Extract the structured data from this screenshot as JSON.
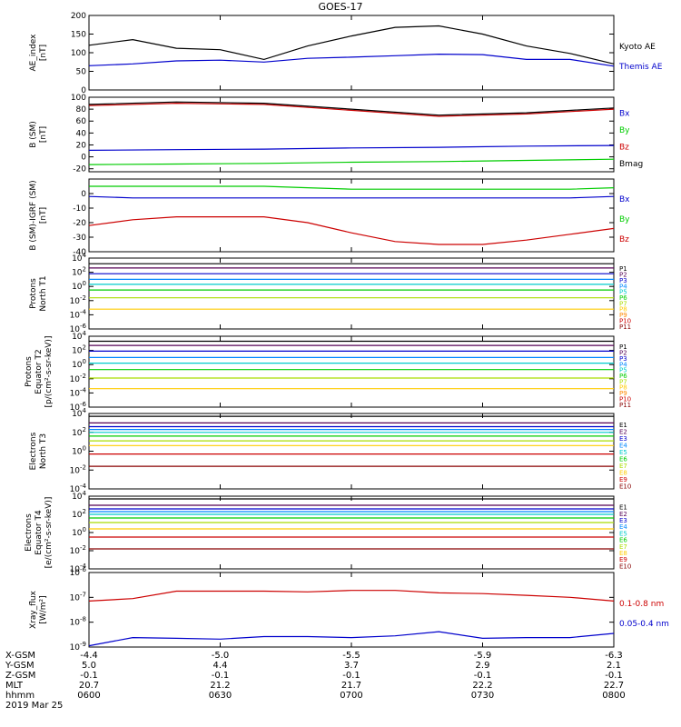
{
  "title": "GOES-17",
  "date_label": "2019 Mar 25",
  "footer": {
    "rows": [
      {
        "label": "X-GSM",
        "values": [
          "-4.4",
          "-5.0",
          "-5.5",
          "-5.9",
          "-6.3"
        ]
      },
      {
        "label": "Y-GSM",
        "values": [
          "5.0",
          "4.4",
          "3.7",
          "2.9",
          "2.1"
        ]
      },
      {
        "label": "Z-GSM",
        "values": [
          "-0.1",
          "-0.1",
          "-0.1",
          "-0.1",
          "-0.1"
        ]
      },
      {
        "label": "MLT",
        "values": [
          "20.7",
          "21.2",
          "21.7",
          "22.2",
          "22.7"
        ]
      },
      {
        "label": "hhmm",
        "values": [
          "0600",
          "0630",
          "0700",
          "0730",
          "0800"
        ]
      }
    ]
  },
  "chart_data": [
    {
      "type": "line",
      "panel": "ae",
      "ylabel": "AE_index\n[nT]",
      "ylim": [
        0,
        200
      ],
      "yscale": "linear",
      "yticks": [
        0,
        50,
        100,
        150,
        200
      ],
      "ytick_labels": [
        "0",
        "50",
        "100",
        "150",
        "200"
      ],
      "xlim": [
        0,
        120
      ],
      "x": [
        0,
        10,
        20,
        30,
        40,
        50,
        60,
        70,
        80,
        90,
        100,
        110,
        120
      ],
      "series": [
        {
          "name": "Kyoto AE",
          "color": "#000000",
          "values": [
            120,
            135,
            112,
            108,
            82,
            118,
            145,
            168,
            172,
            150,
            118,
            98,
            70
          ]
        },
        {
          "name": "Themis AE",
          "color": "#0000cc",
          "values": [
            65,
            70,
            78,
            80,
            75,
            85,
            88,
            92,
            96,
            95,
            82,
            82,
            64
          ]
        }
      ]
    },
    {
      "type": "line",
      "panel": "b-sm",
      "ylabel": "B (SM)\n[nT]",
      "ylim": [
        -25,
        100
      ],
      "yscale": "linear",
      "yticks": [
        -20,
        0,
        20,
        40,
        60,
        80,
        100
      ],
      "ytick_labels": [
        "-20",
        "0",
        "20",
        "40",
        "60",
        "80",
        "100"
      ],
      "xlim": [
        0,
        120
      ],
      "x": [
        0,
        20,
        40,
        60,
        80,
        100,
        120
      ],
      "series": [
        {
          "name": "Bx",
          "color": "#0000cc",
          "values": [
            11,
            12,
            13,
            15,
            16,
            18,
            19
          ]
        },
        {
          "name": "By",
          "color": "#00cc00",
          "values": [
            -13,
            -12,
            -11,
            -9,
            -8,
            -6,
            -4
          ]
        },
        {
          "name": "Bz",
          "color": "#cc0000",
          "values": [
            86,
            90,
            88,
            78,
            68,
            72,
            80
          ]
        },
        {
          "name": "Bmag",
          "color": "#000000",
          "values": [
            88,
            92,
            90,
            80,
            70,
            74,
            82
          ]
        }
      ]
    },
    {
      "type": "line",
      "panel": "b-minus-igrf",
      "ylabel": "B (SM)-IGRF (SM)\n[nT]",
      "ylim": [
        -40,
        10
      ],
      "yscale": "linear",
      "yticks": [
        -40,
        -30,
        -20,
        -10,
        0
      ],
      "ytick_labels": [
        "-40",
        "-30",
        "-20",
        "-10",
        "0"
      ],
      "xlim": [
        0,
        120
      ],
      "x": [
        0,
        10,
        20,
        30,
        40,
        50,
        60,
        70,
        80,
        90,
        100,
        110,
        120
      ],
      "series": [
        {
          "name": "Bx",
          "color": "#0000cc",
          "values": [
            -2,
            -3,
            -3,
            -3,
            -3,
            -3,
            -3,
            -3,
            -3,
            -3,
            -3,
            -3,
            -2
          ]
        },
        {
          "name": "By",
          "color": "#00cc00",
          "values": [
            5,
            5,
            5,
            5,
            5,
            4,
            3,
            3,
            3,
            3,
            3,
            3,
            4
          ]
        },
        {
          "name": "Bz",
          "color": "#cc0000",
          "values": [
            -22,
            -18,
            -16,
            -16,
            -16,
            -20,
            -27,
            -33,
            -35,
            -35,
            -32,
            -28,
            -24
          ]
        }
      ]
    },
    {
      "type": "line",
      "panel": "protons-t1",
      "ylabel": "Protons\nNorth T1",
      "ylim": [
        -6,
        4
      ],
      "yscale": "log10",
      "yticks": [
        -6,
        -4,
        -2,
        0,
        2,
        4
      ],
      "ytick_labels": [
        "10^-6",
        "10^-4",
        "10^-2",
        "10^0",
        "10^2",
        "10^4"
      ],
      "xlim": [
        0,
        120
      ],
      "x": [
        0,
        120
      ],
      "series": [
        {
          "name": "P1",
          "color": "#000000",
          "values": [
            3.2,
            3.2
          ]
        },
        {
          "name": "P2",
          "color": "#550055",
          "values": [
            2.6,
            2.6
          ]
        },
        {
          "name": "P3",
          "color": "#0000cc",
          "values": [
            1.8,
            1.8
          ]
        },
        {
          "name": "P4",
          "color": "#0088ff",
          "values": [
            1.0,
            1.0
          ]
        },
        {
          "name": "P5",
          "color": "#00cccc",
          "values": [
            0.3,
            0.3
          ]
        },
        {
          "name": "P6",
          "color": "#00cc00",
          "values": [
            -0.5,
            -0.5
          ]
        },
        {
          "name": "P7",
          "color": "#aadd00",
          "values": [
            -1.6,
            -1.6
          ]
        },
        {
          "name": "P8",
          "color": "#ffcc00",
          "values": [
            -3.2,
            -3.2
          ]
        },
        {
          "name": "P9",
          "color": "#ff8800",
          "values": [
            null,
            null
          ]
        },
        {
          "name": "P10",
          "color": "#cc0000",
          "values": [
            null,
            null
          ]
        },
        {
          "name": "P11",
          "color": "#880000",
          "values": [
            null,
            null
          ]
        }
      ]
    },
    {
      "type": "line",
      "panel": "protons-t2",
      "ylabel": "Protons\nEquator T2\n[p/(cm²-s-sr-keV)]",
      "ylim": [
        -6,
        4
      ],
      "yscale": "log10",
      "yticks": [
        -6,
        -4,
        -2,
        0,
        2,
        4
      ],
      "ytick_labels": [
        "10^-6",
        "10^-4",
        "10^-2",
        "10^0",
        "10^2",
        "10^4"
      ],
      "xlim": [
        0,
        120
      ],
      "x": [
        0,
        120
      ],
      "series": [
        {
          "name": "P1",
          "color": "#000000",
          "values": [
            3.3,
            3.3
          ]
        },
        {
          "name": "P2",
          "color": "#550055",
          "values": [
            2.7,
            2.7
          ]
        },
        {
          "name": "P3",
          "color": "#0000cc",
          "values": [
            1.9,
            1.9
          ]
        },
        {
          "name": "P4",
          "color": "#0088ff",
          "values": [
            1.0,
            1.0
          ]
        },
        {
          "name": "P5",
          "color": "#00cccc",
          "values": [
            0.2,
            0.2
          ]
        },
        {
          "name": "P6",
          "color": "#00cc00",
          "values": [
            -0.7,
            -0.7
          ]
        },
        {
          "name": "P7",
          "color": "#aadd00",
          "values": [
            -1.9,
            -1.9
          ]
        },
        {
          "name": "P8",
          "color": "#ffcc00",
          "values": [
            -3.4,
            -3.4
          ]
        },
        {
          "name": "P9",
          "color": "#ff8800",
          "values": [
            null,
            null
          ]
        },
        {
          "name": "P10",
          "color": "#cc0000",
          "values": [
            null,
            null
          ]
        },
        {
          "name": "P11",
          "color": "#880000",
          "values": [
            null,
            null
          ]
        }
      ]
    },
    {
      "type": "line",
      "panel": "electrons-t3",
      "ylabel": "Electrons\nNorth T3",
      "ylim": [
        -4,
        4
      ],
      "yscale": "log10",
      "yticks": [
        -4,
        -2,
        0,
        2,
        4
      ],
      "ytick_labels": [
        "10^-4",
        "10^-2",
        "10^0",
        "10^2",
        "10^4"
      ],
      "xlim": [
        0,
        120
      ],
      "x": [
        0,
        120
      ],
      "series": [
        {
          "name": "E1",
          "color": "#000000",
          "values": [
            3.7,
            3.7
          ]
        },
        {
          "name": "E2",
          "color": "#550055",
          "values": [
            3.0,
            3.0
          ]
        },
        {
          "name": "E3",
          "color": "#0000cc",
          "values": [
            2.6,
            2.6
          ]
        },
        {
          "name": "E4",
          "color": "#0088ff",
          "values": [
            2.3,
            2.3
          ]
        },
        {
          "name": "E5",
          "color": "#00cccc",
          "values": [
            2.0,
            2.0
          ]
        },
        {
          "name": "E6",
          "color": "#00cc00",
          "values": [
            1.6,
            1.6
          ]
        },
        {
          "name": "E7",
          "color": "#aadd00",
          "values": [
            1.1,
            1.1
          ]
        },
        {
          "name": "E8",
          "color": "#ffcc00",
          "values": [
            0.6,
            0.6
          ]
        },
        {
          "name": "E9",
          "color": "#cc0000",
          "values": [
            -0.3,
            -0.3
          ]
        },
        {
          "name": "E10",
          "color": "#880000",
          "values": [
            -1.6,
            -1.6
          ]
        }
      ]
    },
    {
      "type": "line",
      "panel": "electrons-t4",
      "ylabel": "Electrons\nEquator T4\n[e/(cm²-s-sr-keV)]",
      "ylim": [
        -4,
        4
      ],
      "yscale": "log10",
      "yticks": [
        -4,
        -2,
        0,
        2,
        4
      ],
      "ytick_labels": [
        "10^-4",
        "10^-2",
        "10^0",
        "10^2",
        "10^4"
      ],
      "xlim": [
        0,
        120
      ],
      "x": [
        0,
        120
      ],
      "series": [
        {
          "name": "E1",
          "color": "#000000",
          "values": [
            3.7,
            3.7
          ]
        },
        {
          "name": "E2",
          "color": "#550055",
          "values": [
            3.0,
            3.0
          ]
        },
        {
          "name": "E3",
          "color": "#0000cc",
          "values": [
            2.6,
            2.6
          ]
        },
        {
          "name": "E4",
          "color": "#0088ff",
          "values": [
            2.3,
            2.3
          ]
        },
        {
          "name": "E5",
          "color": "#00cccc",
          "values": [
            2.0,
            2.0
          ]
        },
        {
          "name": "E6",
          "color": "#00cc00",
          "values": [
            1.6,
            1.6
          ]
        },
        {
          "name": "E7",
          "color": "#aadd00",
          "values": [
            1.1,
            1.1
          ]
        },
        {
          "name": "E8",
          "color": "#ffcc00",
          "values": [
            0.4,
            0.4
          ]
        },
        {
          "name": "E9",
          "color": "#cc0000",
          "values": [
            -0.5,
            -0.5
          ]
        },
        {
          "name": "E10",
          "color": "#880000",
          "values": [
            -1.8,
            -1.8
          ]
        }
      ]
    },
    {
      "type": "line",
      "panel": "xray",
      "ylabel": "Xray_flux\n[W/m²]",
      "ylim": [
        -9,
        -6
      ],
      "yscale": "log10",
      "yticks": [
        -9,
        -8,
        -7,
        -6
      ],
      "ytick_labels": [
        "10^-9",
        "10^-8",
        "10^-7",
        "10^-6"
      ],
      "xlim": [
        0,
        120
      ],
      "x": [
        0,
        10,
        20,
        30,
        40,
        50,
        60,
        70,
        80,
        90,
        100,
        110,
        120
      ],
      "series": [
        {
          "name": "0.1-0.8 nm",
          "color": "#cc0000",
          "values": [
            -7.15,
            -7.05,
            -6.75,
            -6.75,
            -6.75,
            -6.78,
            -6.72,
            -6.72,
            -6.82,
            -6.85,
            -6.92,
            -7.0,
            -7.15
          ]
        },
        {
          "name": "0.05-0.4 nm",
          "color": "#0000cc",
          "values": [
            -8.95,
            -8.62,
            -8.65,
            -8.68,
            -8.58,
            -8.58,
            -8.62,
            -8.55,
            -8.38,
            -8.65,
            -8.62,
            -8.62,
            -8.45
          ]
        }
      ]
    }
  ]
}
